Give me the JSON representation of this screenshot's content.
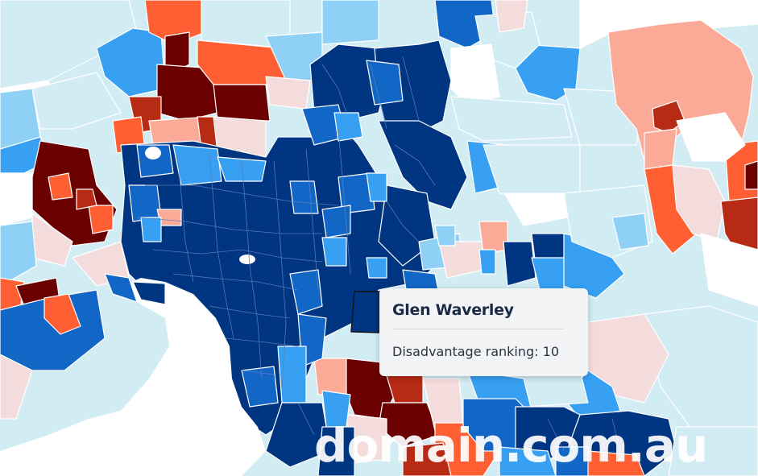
{
  "tooltip": {
    "title": "Glen Waverley",
    "label": "Disadvantage ranking:",
    "value": "10"
  },
  "watermark": "domain.com.au",
  "colors": {
    "rank_1": "#6b0000",
    "rank_2": "#b72a14",
    "rank_3": "#ff5f33",
    "rank_4": "#fcaa98",
    "rank_5": "#f4dcdc",
    "rank_6": "#d2ecf4",
    "rank_7": "#8fd0f6",
    "rank_8": "#37a0f2",
    "rank_9": "#1267c6",
    "rank_10": "#003581",
    "water": "#ffffff"
  }
}
